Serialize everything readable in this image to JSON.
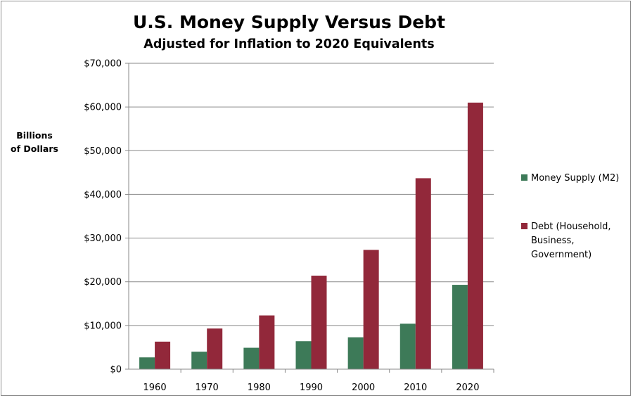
{
  "chart_data": {
    "type": "bar",
    "title": "U.S. Money Supply Versus Debt",
    "subtitle": "Adjusted for Inflation to 2020 Equivalents",
    "ylabel": [
      "Billions",
      "of Dollars"
    ],
    "xlabel": "",
    "categories": [
      "1960",
      "1970",
      "1980",
      "1990",
      "2000",
      "2010",
      "2020"
    ],
    "ylim": [
      0,
      70000
    ],
    "yticks": [
      0,
      10000,
      20000,
      30000,
      40000,
      50000,
      60000,
      70000
    ],
    "ytick_labels": [
      "$0",
      "$10,000",
      "$20,000",
      "$30,000",
      "$40,000",
      "$50,000",
      "$60,000",
      "$70,000"
    ],
    "grid": true,
    "legend_position": "right",
    "series": [
      {
        "name": "Money Supply (M2)",
        "legend_lines": [
          "Money Supply (M2)"
        ],
        "color": "#3d7a58",
        "values": [
          2700,
          4000,
          4900,
          6400,
          7300,
          10400,
          19300
        ]
      },
      {
        "name": "Debt (Household, Business, Government)",
        "legend_lines": [
          "Debt (Household,",
          "Business,",
          "Government)"
        ],
        "color": "#92283a",
        "values": [
          6300,
          9300,
          12300,
          21400,
          27300,
          43700,
          61000
        ]
      }
    ]
  }
}
